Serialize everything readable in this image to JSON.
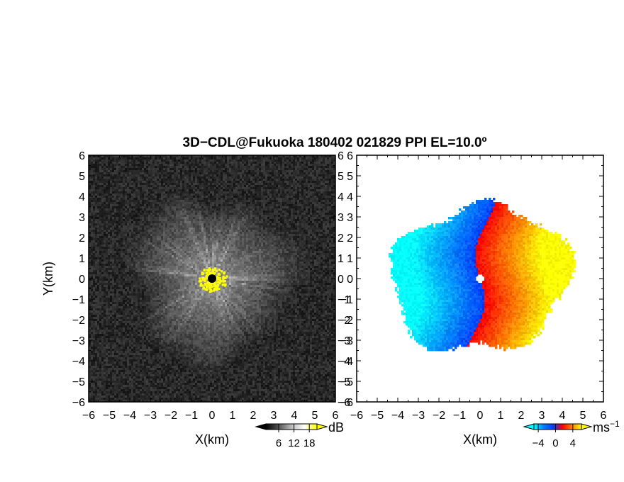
{
  "title": "3D−CDL@Fukuoka 180402 021829 PPI EL=10.0º",
  "chart_data": [
    {
      "type": "heatmap",
      "panel": "left",
      "xlabel": "X(km)",
      "ylabel": "Y(km)",
      "xlim": [
        -6,
        6
      ],
      "ylim": [
        -6,
        6
      ],
      "xticks": [
        -6,
        -5,
        -4,
        -3,
        -2,
        -1,
        0,
        1,
        2,
        3,
        4,
        5,
        6
      ],
      "yticks": [
        -6,
        -5,
        -4,
        -3,
        -2,
        -1,
        0,
        1,
        2,
        3,
        4,
        5,
        6
      ],
      "x_tick_labels": [
        "−6",
        "−5",
        "−4",
        "−3",
        "−2",
        "−1",
        "0",
        "1",
        "2",
        "3",
        "4",
        "5",
        "6"
      ],
      "y_tick_labels": [
        "−6",
        "−5",
        "−4",
        "−3",
        "−2",
        "−1",
        "0",
        "1",
        "2",
        "3",
        "4",
        "5",
        "6"
      ],
      "colorbar": {
        "unit": "dB",
        "ticks": [
          6,
          12,
          18
        ],
        "tick_labels": [
          "6",
          "12",
          "18"
        ],
        "colors": [
          "#000000",
          "#ffffff",
          "#ffff00"
        ]
      }
    },
    {
      "type": "heatmap",
      "panel": "right",
      "xlabel": "X(km)",
      "xlim": [
        -6,
        6
      ],
      "ylim": [
        -6,
        6
      ],
      "xticks": [
        -6,
        -5,
        -4,
        -3,
        -2,
        -1,
        0,
        1,
        2,
        3,
        4,
        5,
        6
      ],
      "yticks": [
        -6,
        -5,
        -4,
        -3,
        -2,
        -1,
        0,
        1,
        2,
        3,
        4,
        5,
        6
      ],
      "x_tick_labels": [
        "−6",
        "−5",
        "−4",
        "−3",
        "−2",
        "−1",
        "0",
        "1",
        "2",
        "3",
        "4",
        "5",
        "6"
      ],
      "y_tick_labels": [
        "−6",
        "−5",
        "−4",
        "−3",
        "−2",
        "−1",
        "0",
        "1",
        "2",
        "3",
        "4",
        "5",
        "6"
      ],
      "colorbar": {
        "unit": "ms",
        "unit_exponent": "−1",
        "ticks": [
          -4,
          0,
          4
        ],
        "tick_labels": [
          "−4",
          "0",
          "4"
        ],
        "colors": [
          "#00ffff",
          "#0040ff",
          "#ff0000",
          "#ffff00"
        ]
      }
    }
  ]
}
